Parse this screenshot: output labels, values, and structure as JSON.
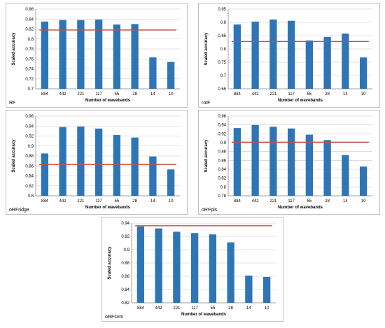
{
  "chart_data": [
    {
      "type": "bar",
      "panel_label": "RF",
      "categories": [
        "884",
        "442",
        "221",
        "117",
        "55",
        "28",
        "14",
        "10"
      ],
      "values": [
        0.835,
        0.838,
        0.838,
        0.839,
        0.829,
        0.83,
        0.763,
        0.754
      ],
      "reference_line": 0.818,
      "xlabel": "Number of wavebands",
      "ylabel": "Scaled accuracy",
      "ylim": [
        0.7,
        0.86
      ],
      "yticks": [
        0.7,
        0.72,
        0.74,
        0.76,
        0.78,
        0.8,
        0.82,
        0.84,
        0.86
      ],
      "ytick_labels": [
        "0.7",
        "0.72",
        "0.74",
        "0.76",
        "0.78",
        "0.8",
        "0.82",
        "0.84",
        "0.86"
      ],
      "grid": true,
      "bar_color": "#2e75b6",
      "line_color": "#c0504d"
    },
    {
      "type": "bar",
      "panel_label": "rotF",
      "categories": [
        "884",
        "442",
        "221",
        "117",
        "55",
        "28",
        "14",
        "10"
      ],
      "values": [
        0.892,
        0.903,
        0.911,
        0.906,
        0.832,
        0.845,
        0.858,
        0.768
      ],
      "reference_line": 0.828,
      "xlabel": "Number of wavebands",
      "ylabel": "Scaled accuracy",
      "ylim": [
        0.65,
        0.95
      ],
      "yticks": [
        0.65,
        0.7,
        0.75,
        0.8,
        0.85,
        0.9,
        0.95
      ],
      "ytick_labels": [
        "0.65",
        "0.7",
        "0.75",
        "0.8",
        "0.85",
        "0.9",
        "0.95"
      ],
      "grid": true,
      "bar_color": "#2e75b6",
      "line_color": "#c0504d"
    },
    {
      "type": "bar",
      "panel_label": "oRFridge",
      "categories": [
        "884",
        "442",
        "221",
        "117",
        "55",
        "28",
        "14",
        "10"
      ],
      "values": [
        0.885,
        0.938,
        0.939,
        0.935,
        0.922,
        0.917,
        0.879,
        0.853
      ],
      "reference_line": 0.863,
      "xlabel": "Number of wavebands",
      "ylabel": "Scaled accuracy",
      "ylim": [
        0.8,
        0.96
      ],
      "yticks": [
        0.8,
        0.82,
        0.84,
        0.86,
        0.88,
        0.9,
        0.92,
        0.94,
        0.96
      ],
      "ytick_labels": [
        "0.8",
        "0.82",
        "0.84",
        "0.86",
        "0.88",
        "0.9",
        "0.92",
        "0.94",
        "0.96"
      ],
      "grid": true,
      "bar_color": "#2e75b6",
      "line_color": "#c0504d"
    },
    {
      "type": "bar",
      "panel_label": "oRFpls",
      "categories": [
        "884",
        "442",
        "221",
        "117",
        "55",
        "28",
        "14",
        "10"
      ],
      "values": [
        0.933,
        0.94,
        0.936,
        0.932,
        0.918,
        0.906,
        0.872,
        0.846
      ],
      "reference_line": 0.901,
      "xlabel": "Number of wavebands",
      "ylabel": "Scaled accuracy",
      "ylim": [
        0.78,
        0.96
      ],
      "yticks": [
        0.78,
        0.8,
        0.82,
        0.84,
        0.86,
        0.88,
        0.9,
        0.92,
        0.94,
        0.96
      ],
      "ytick_labels": [
        "0.78",
        "0.8",
        "0.82",
        "0.84",
        "0.86",
        "0.88",
        "0.9",
        "0.92",
        "0.94",
        "0.96"
      ],
      "grid": true,
      "bar_color": "#2e75b6",
      "line_color": "#c0504d"
    },
    {
      "type": "bar",
      "panel_label": "oRFsvm",
      "categories": [
        "884",
        "442",
        "221",
        "117",
        "55",
        "28",
        "14",
        "10"
      ],
      "values": [
        0.935,
        0.932,
        0.927,
        0.925,
        0.923,
        0.911,
        0.861,
        0.859
      ],
      "reference_line": 0.936,
      "xlabel": "Number of wavebands",
      "ylabel": "Scaled accuracy",
      "ylim": [
        0.82,
        0.94
      ],
      "yticks": [
        0.82,
        0.84,
        0.86,
        0.88,
        0.9,
        0.92,
        0.94
      ],
      "ytick_labels": [
        "0.82",
        "0.84",
        "0.86",
        "0.88",
        "0.9",
        "0.92",
        "0.94"
      ],
      "grid": true,
      "bar_color": "#2e75b6",
      "line_color": "#c0504d"
    }
  ]
}
